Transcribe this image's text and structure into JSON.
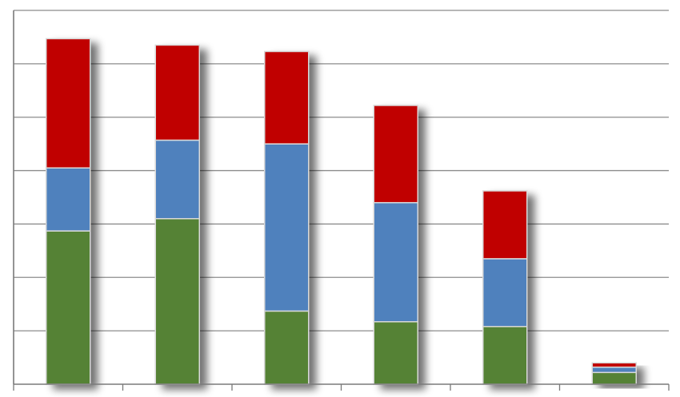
{
  "chart_data": {
    "type": "bar",
    "stacked": true,
    "categories": [
      "",
      "",
      "",
      "",
      "",
      ""
    ],
    "series": [
      {
        "color": "#548235",
        "values": [
          2.87,
          3.1,
          1.37,
          1.17,
          1.08,
          0.22
        ]
      },
      {
        "color": "#4f81bd",
        "values": [
          1.18,
          1.47,
          3.13,
          2.23,
          1.27,
          0.1
        ]
      },
      {
        "color": "#c00000",
        "values": [
          2.42,
          1.78,
          1.73,
          1.82,
          1.27,
          0.08
        ]
      }
    ],
    "ylim": [
      0,
      7
    ],
    "yticks": [
      0,
      1,
      2,
      3,
      4,
      5,
      6,
      7
    ],
    "grid": true,
    "legend": "none",
    "shadow": true,
    "title": "",
    "xlabel": "",
    "ylabel": ""
  }
}
